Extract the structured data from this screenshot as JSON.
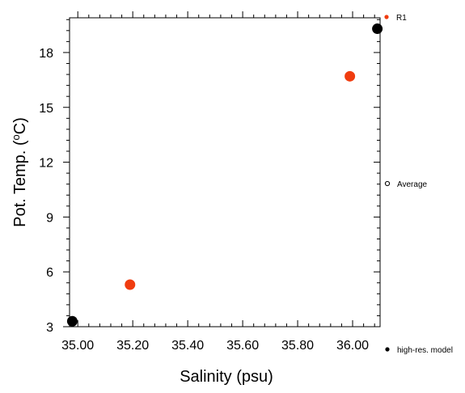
{
  "chart_data": {
    "type": "scatter",
    "title": "",
    "xlabel": "Salinity (psu)",
    "ylabel_main": "Pot. Temp. (",
    "ylabel_sup": "o",
    "ylabel_tail": "C)",
    "xlim": [
      34.97,
      36.1
    ],
    "ylim": [
      3.0,
      19.9
    ],
    "x_major_ticks": [
      35.0,
      35.2,
      35.4,
      35.6,
      35.8,
      36.0
    ],
    "x_tick_labels": [
      "35.00",
      "35.20",
      "35.40",
      "35.60",
      "35.80",
      "36.00"
    ],
    "x_minor_step": 0.04,
    "y_major_ticks": [
      3,
      6,
      9,
      12,
      15,
      18
    ],
    "y_tick_labels": [
      "3",
      "6",
      "9",
      "12",
      "15",
      "18"
    ],
    "y_minor_step": 0.6,
    "grid": false,
    "legend_position": "right, outside plot",
    "series": [
      {
        "name": "R1",
        "color": "#f03c0f",
        "marker": "filled-circle",
        "points": [
          {
            "x": 35.19,
            "y": 5.3
          },
          {
            "x": 35.99,
            "y": 16.7
          }
        ]
      },
      {
        "name": "Average",
        "color": "#000000",
        "marker": "open-circle",
        "points": []
      },
      {
        "name": "high-res. model",
        "color": "#000000",
        "marker": "filled-circle",
        "points": [
          {
            "x": 34.98,
            "y": 3.3
          },
          {
            "x": 36.09,
            "y": 19.3
          }
        ]
      }
    ]
  }
}
